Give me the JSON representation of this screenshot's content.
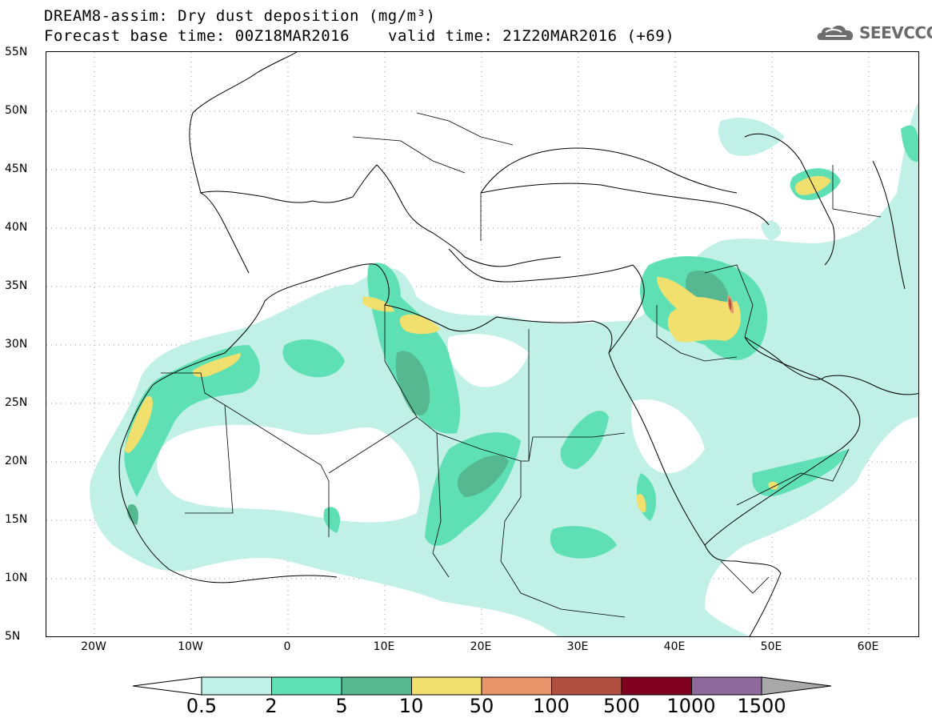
{
  "title": {
    "line1": "DREAM8-assim: Dry dust deposition (mg/m³)",
    "line2": "Forecast base time: 00Z18MAR2016",
    "valid": "valid time: 21Z20MAR2016 (+69)"
  },
  "logo": {
    "text": "SEEVCCC",
    "icon": "cloud-logo-icon"
  },
  "axes": {
    "lat_labels": [
      "55N",
      "50N",
      "45N",
      "40N",
      "35N",
      "30N",
      "25N",
      "20N",
      "15N",
      "10N",
      "5N"
    ],
    "lon_labels": [
      "20W",
      "10W",
      "0",
      "10E",
      "20E",
      "30E",
      "40E",
      "50E",
      "60E"
    ]
  },
  "legend": {
    "labels": [
      "0.5",
      "2",
      "5",
      "10",
      "50",
      "100",
      "500",
      "1000",
      "1500"
    ],
    "colors": [
      "#c0f0e6",
      "#5fe0b4",
      "#56b891",
      "#f2e06e",
      "#e9956c",
      "#b04e3f",
      "#800020",
      "#8e6a9c"
    ],
    "under_color": "#ffffff",
    "over_color": "#a9a9a9"
  },
  "colors": {
    "land_border": "#000000",
    "grid": "#9a9a9a"
  }
}
